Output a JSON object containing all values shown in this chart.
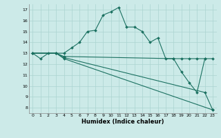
{
  "xlabel": "Humidex (Indice chaleur)",
  "bg_color": "#cceae8",
  "grid_color": "#aad4d0",
  "line_color": "#1a7060",
  "ylim": [
    7.5,
    17.5
  ],
  "xlim": [
    -0.5,
    23.5
  ],
  "yticks": [
    8,
    9,
    10,
    11,
    12,
    13,
    14,
    15,
    16,
    17
  ],
  "xticks": [
    0,
    1,
    2,
    3,
    4,
    5,
    6,
    7,
    8,
    9,
    10,
    11,
    12,
    13,
    14,
    15,
    16,
    17,
    18,
    19,
    20,
    21,
    22,
    23
  ],
  "series": [
    {
      "x": [
        0,
        1,
        2,
        3,
        4,
        5,
        6,
        7,
        8,
        9,
        10,
        11,
        12,
        13,
        14,
        15,
        16,
        17,
        18,
        19,
        20,
        21,
        22
      ],
      "y": [
        13.0,
        12.5,
        13.0,
        13.0,
        13.0,
        13.5,
        14.0,
        15.0,
        15.1,
        16.5,
        16.8,
        17.2,
        15.4,
        15.4,
        15.0,
        14.0,
        14.4,
        12.5,
        12.5,
        11.3,
        10.3,
        9.4,
        12.5
      ]
    },
    {
      "x": [
        0,
        3,
        4,
        18,
        19,
        20,
        21,
        22,
        23
      ],
      "y": [
        13.0,
        13.0,
        12.7,
        12.5,
        12.5,
        12.5,
        12.5,
        12.5,
        12.5
      ]
    },
    {
      "x": [
        0,
        3,
        4,
        22,
        23
      ],
      "y": [
        13.0,
        13.0,
        12.6,
        9.4,
        7.8
      ]
    },
    {
      "x": [
        0,
        3,
        4,
        23
      ],
      "y": [
        13.0,
        13.0,
        12.5,
        7.8
      ]
    }
  ]
}
